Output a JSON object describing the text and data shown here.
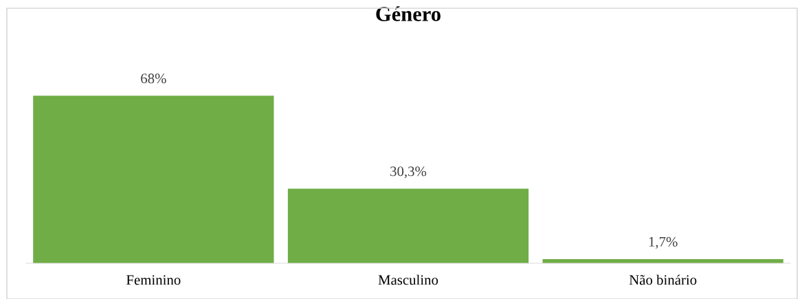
{
  "chart_data": {
    "type": "bar",
    "title": "Género",
    "categories": [
      "Feminino",
      "Masculino",
      "Não binário"
    ],
    "values": [
      68,
      30.3,
      1.7
    ],
    "value_labels": [
      "68%",
      "30,3%",
      "1,7%"
    ],
    "color": "#70ad47"
  }
}
